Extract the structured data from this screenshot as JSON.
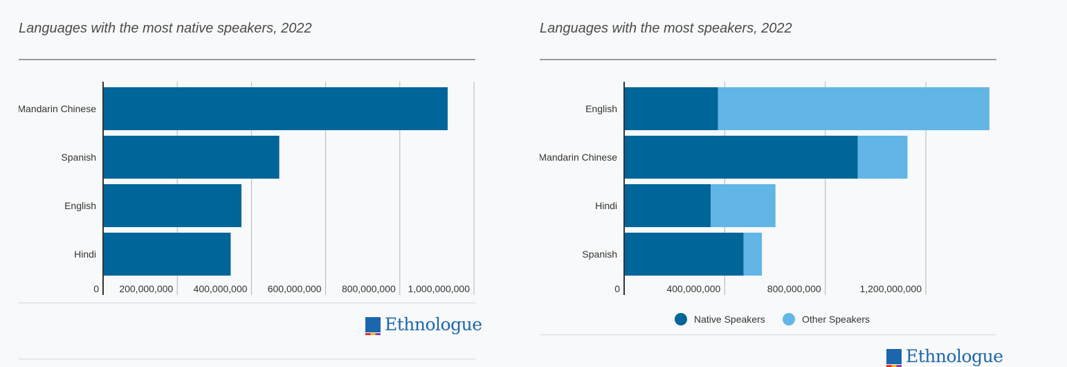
{
  "colors": {
    "native": "#006599",
    "other": "#61b6e5",
    "grid": "#b3b3b3",
    "axis": "#333333",
    "text": "#333333",
    "background": "#f8f9fa",
    "logo": "#1b66ad"
  },
  "logo": {
    "text": "Ethnologue",
    "icon": "ethnologue-logo-icon"
  },
  "chart_data": [
    {
      "type": "bar",
      "orientation": "horizontal",
      "title": "Languages with the most native speakers, 2022",
      "categories": [
        "Mandarin Chinese",
        "Spanish",
        "English",
        "Hindi"
      ],
      "series": [
        {
          "values": [
            929000000,
            475000000,
            373000000,
            344000000
          ]
        }
      ],
      "xlim": [
        0,
        1000000000
      ],
      "xticks": [
        0,
        200000000,
        400000000,
        600000000,
        800000000,
        1000000000
      ],
      "xtick_labels": [
        "0",
        "200,000,000",
        "400,000,000",
        "600,000,000",
        "800,000,000",
        "1,000,000,000"
      ],
      "grid": true,
      "legend": "none"
    },
    {
      "type": "bar",
      "orientation": "horizontal",
      "stacked": true,
      "title": "Languages with the most speakers, 2022",
      "categories": [
        "English",
        "Mandarin Chinese",
        "Hindi",
        "Spanish"
      ],
      "series": [
        {
          "name": "Native Speakers",
          "values": [
            373000000,
            929000000,
            344000000,
            475000000
          ]
        },
        {
          "name": "Other Speakers",
          "values": [
            1080000000,
            198000000,
            258000000,
            73000000
          ]
        }
      ],
      "xlim": [
        0,
        1500000000
      ],
      "xticks": [
        0,
        400000000,
        800000000,
        1200000000
      ],
      "xtick_labels": [
        "0",
        "400,000,000",
        "800,000,000",
        "1,200,000,000"
      ],
      "grid": true,
      "legend": "bottom"
    }
  ]
}
